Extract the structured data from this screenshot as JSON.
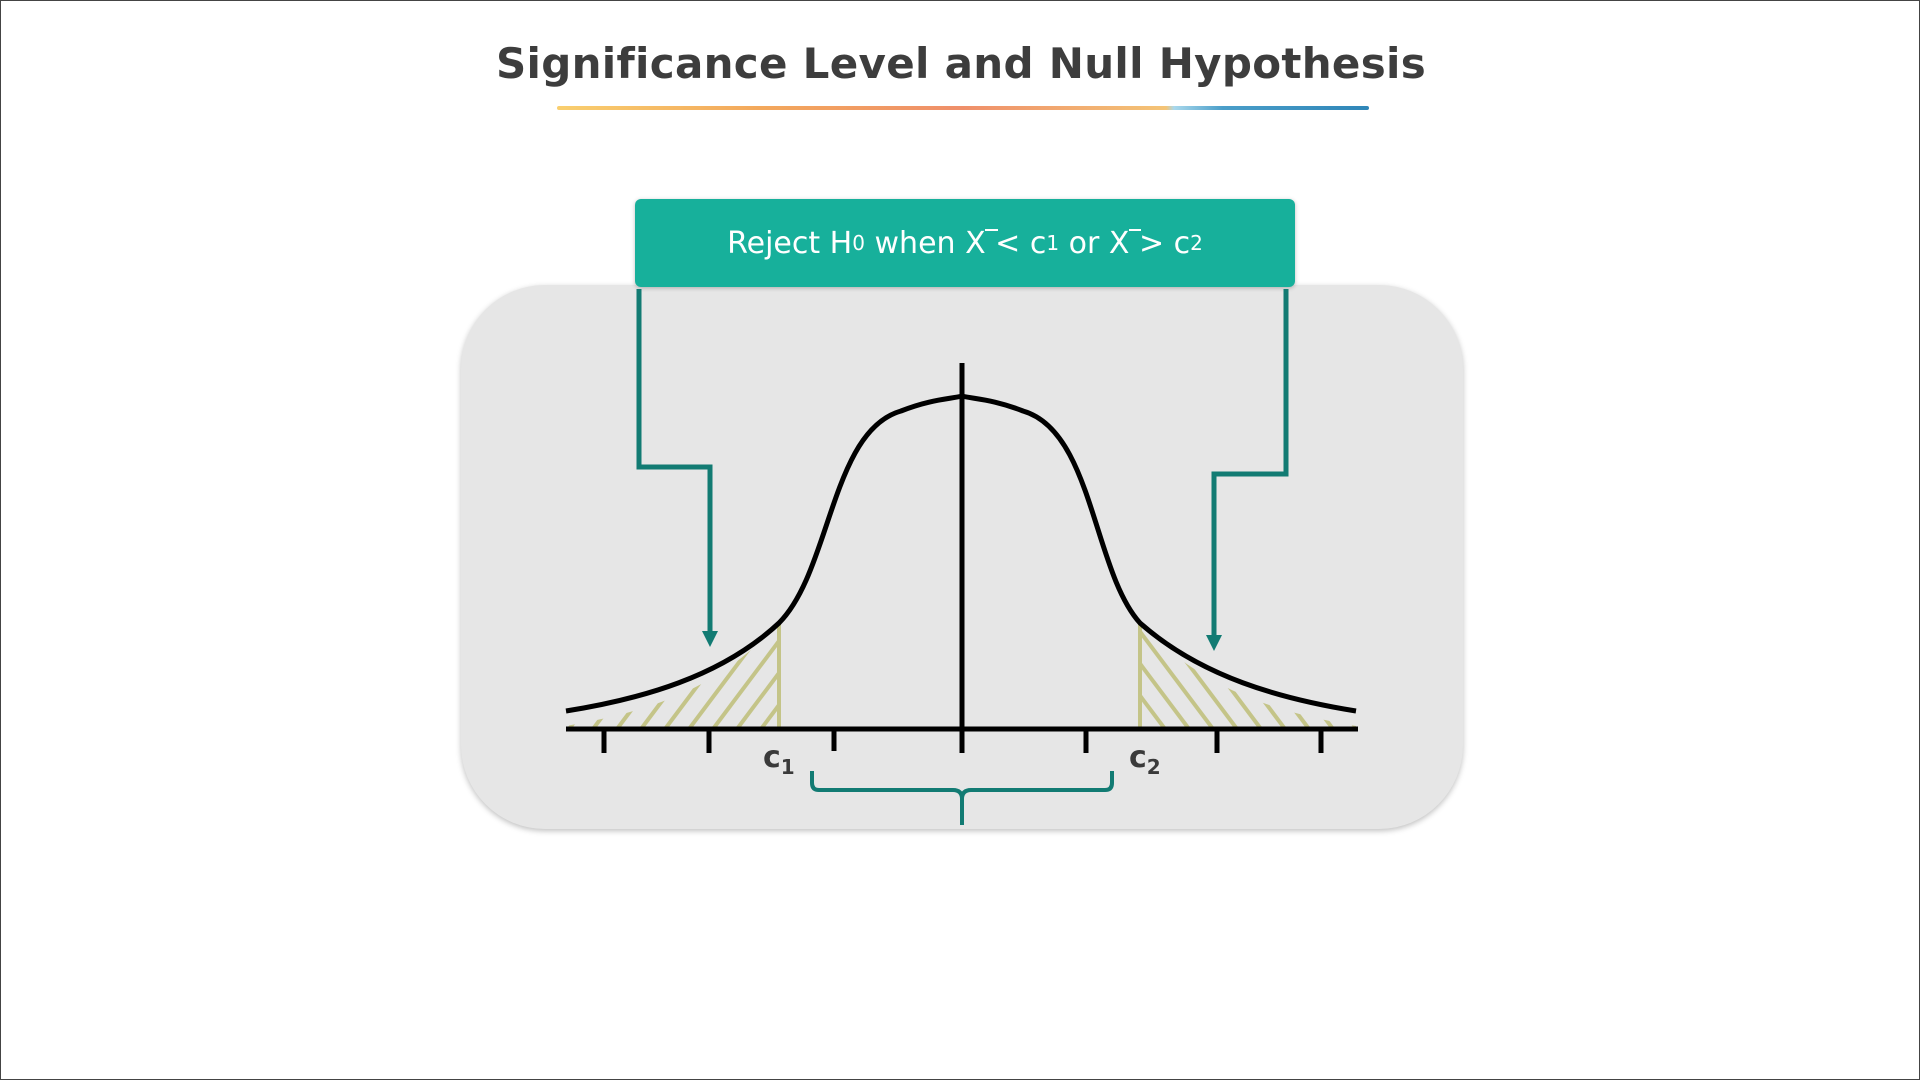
{
  "title": "Significance Level and Null Hypothesis",
  "rejection_rule": {
    "prefix": "Reject H",
    "h_subscript": "0",
    "when_text": " when ",
    "xbar_1": "X",
    "op_less": " < c",
    "c1_subscript": "1",
    "or_text": " or ",
    "xbar_2": "X",
    "op_greater": " > c",
    "c2_subscript": "2"
  },
  "critical_values": {
    "c1_label": "c",
    "c1_sub": "1",
    "c2_label": "c",
    "c2_sub": "2"
  },
  "colors": {
    "banner": "#17b09b",
    "arrow": "#127b73",
    "hatch": "#c4c488",
    "curve": "#000000",
    "panel": "#e6e6e6"
  }
}
